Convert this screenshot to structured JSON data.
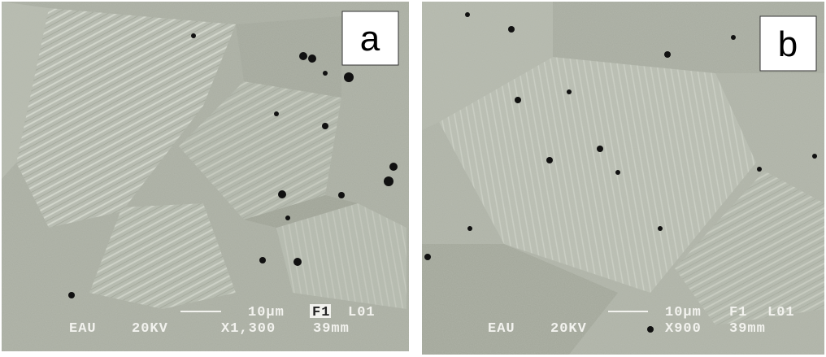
{
  "panels": [
    {
      "label": "a",
      "scale_bar": "10μm",
      "frame": "F1",
      "line": "L01",
      "operator": "EAU",
      "voltage": "20KV",
      "magnification": "X1,300",
      "working_distance": "39mm"
    },
    {
      "label": "b",
      "scale_bar": "10μm",
      "frame": "F1",
      "line": "L01",
      "operator": "EAU",
      "voltage": "20KV",
      "magnification": "X900",
      "working_distance": "39mm"
    }
  ]
}
